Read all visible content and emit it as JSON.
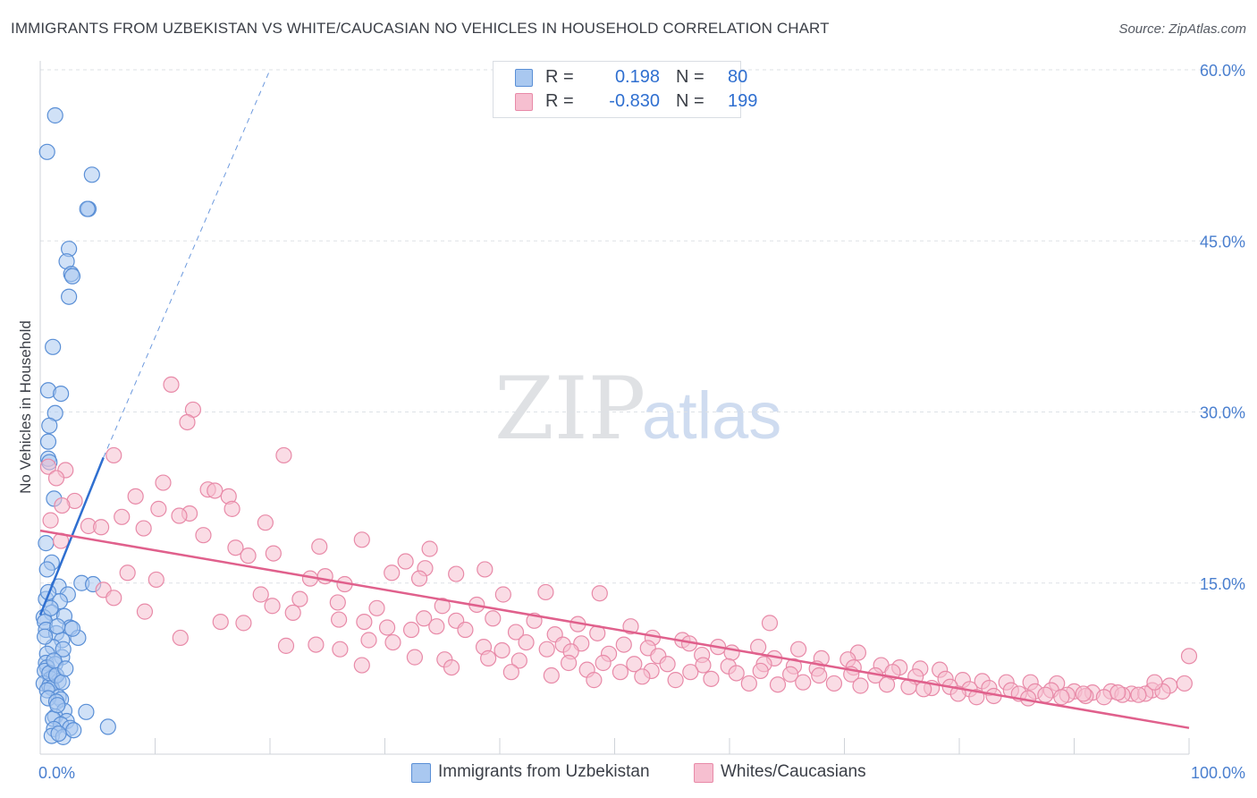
{
  "title": "IMMIGRANTS FROM UZBEKISTAN VS WHITE/CAUCASIAN NO VEHICLES IN HOUSEHOLD CORRELATION CHART",
  "source": "Source: ZipAtlas.com",
  "watermark": {
    "zip": "ZIP",
    "atlas": "atlas"
  },
  "legend": {
    "series1": {
      "r_label": "R =",
      "r_value": "0.198",
      "n_label": "N =",
      "n_value": "80"
    },
    "series2": {
      "r_label": "R =",
      "r_value": "-0.830",
      "n_label": "N =",
      "n_value": "199"
    }
  },
  "bottom_legend": {
    "series1": "Immigrants from Uzbekistan",
    "series2": "Whites/Caucasians"
  },
  "colors": {
    "series1_fill": "#a9c8f0",
    "series1_stroke": "#5a8fd6",
    "series1_line": "#2f6fd0",
    "series2_fill": "#f6bfd0",
    "series2_stroke": "#e88aa8",
    "series2_line": "#e0608c",
    "tick_label": "#4a7fcf",
    "grid": "#dde1e6"
  },
  "chart_data": {
    "type": "scatter",
    "xlabel": "",
    "ylabel": "No Vehicles in Household",
    "xlim": [
      0,
      100
    ],
    "ylim": [
      0,
      60
    ],
    "x_tick_labels": [
      "0.0%",
      "100.0%"
    ],
    "y_ticks": [
      15,
      30,
      45,
      60
    ],
    "y_tick_labels": [
      "15.0%",
      "30.0%",
      "45.0%",
      "60.0%"
    ],
    "grid": "horizontal dashed",
    "series": [
      {
        "name": "Immigrants from Uzbekistan",
        "trend": {
          "x": [
            0.0,
            5.5
          ],
          "y": [
            12.2,
            26.0
          ],
          "extended_to": [
            20.0,
            60.0
          ]
        },
        "points": [
          [
            1.3,
            56.0
          ],
          [
            0.6,
            52.8
          ],
          [
            4.5,
            50.8
          ],
          [
            4.2,
            47.8
          ],
          [
            4.1,
            47.8
          ],
          [
            2.5,
            44.3
          ],
          [
            2.3,
            43.2
          ],
          [
            2.7,
            42.1
          ],
          [
            2.8,
            41.9
          ],
          [
            2.5,
            40.1
          ],
          [
            1.1,
            35.7
          ],
          [
            0.7,
            31.9
          ],
          [
            1.8,
            31.6
          ],
          [
            1.3,
            29.9
          ],
          [
            0.8,
            28.8
          ],
          [
            0.7,
            27.4
          ],
          [
            0.7,
            25.9
          ],
          [
            0.8,
            25.6
          ],
          [
            1.2,
            22.4
          ],
          [
            0.5,
            18.5
          ],
          [
            1.0,
            16.8
          ],
          [
            0.6,
            16.2
          ],
          [
            3.6,
            15.0
          ],
          [
            4.6,
            14.9
          ],
          [
            1.6,
            14.7
          ],
          [
            2.4,
            14.0
          ],
          [
            0.5,
            13.6
          ],
          [
            1.7,
            13.4
          ],
          [
            1.0,
            12.4
          ],
          [
            2.1,
            12.1
          ],
          [
            0.3,
            12.0
          ],
          [
            0.4,
            11.6
          ],
          [
            2.6,
            11.1
          ],
          [
            0.5,
            10.9
          ],
          [
            1.4,
            10.6
          ],
          [
            3.3,
            10.2
          ],
          [
            1.9,
            10.0
          ],
          [
            1.1,
            9.4
          ],
          [
            0.6,
            8.8
          ],
          [
            1.9,
            8.5
          ],
          [
            0.5,
            8.0
          ],
          [
            1.3,
            7.9
          ],
          [
            0.6,
            7.6
          ],
          [
            0.4,
            7.3
          ],
          [
            1.2,
            6.8
          ],
          [
            0.9,
            6.6
          ],
          [
            1.6,
            6.4
          ],
          [
            0.3,
            6.2
          ],
          [
            0.8,
            6.0
          ],
          [
            1.0,
            5.8
          ],
          [
            0.6,
            5.6
          ],
          [
            1.6,
            5.0
          ],
          [
            1.8,
            4.8
          ],
          [
            0.7,
            4.9
          ],
          [
            1.4,
            4.6
          ],
          [
            2.1,
            3.8
          ],
          [
            4.0,
            3.7
          ],
          [
            1.3,
            3.3
          ],
          [
            1.1,
            3.1
          ],
          [
            2.3,
            2.9
          ],
          [
            1.8,
            2.6
          ],
          [
            2.6,
            2.3
          ],
          [
            1.2,
            2.2
          ],
          [
            5.9,
            2.4
          ],
          [
            1.0,
            1.6
          ],
          [
            2.0,
            1.5
          ],
          [
            1.6,
            1.8
          ],
          [
            0.9,
            12.8
          ],
          [
            1.5,
            11.2
          ],
          [
            2.0,
            9.2
          ],
          [
            0.8,
            7.1
          ],
          [
            1.4,
            6.9
          ],
          [
            1.9,
            6.3
          ],
          [
            2.8,
            11.0
          ],
          [
            0.4,
            10.3
          ],
          [
            1.2,
            8.2
          ],
          [
            0.7,
            14.2
          ],
          [
            2.2,
            7.5
          ],
          [
            1.5,
            4.3
          ],
          [
            2.9,
            2.1
          ]
        ]
      },
      {
        "name": "Whites/Caucasians",
        "trend": {
          "x": [
            0.0,
            100.0
          ],
          "y": [
            19.6,
            2.3
          ]
        },
        "points": [
          [
            11.4,
            32.4
          ],
          [
            13.3,
            30.2
          ],
          [
            12.8,
            29.1
          ],
          [
            6.4,
            26.2
          ],
          [
            21.2,
            26.2
          ],
          [
            0.7,
            25.2
          ],
          [
            2.2,
            24.9
          ],
          [
            1.4,
            24.2
          ],
          [
            10.7,
            23.8
          ],
          [
            14.6,
            23.2
          ],
          [
            15.2,
            23.1
          ],
          [
            8.3,
            22.6
          ],
          [
            16.4,
            22.6
          ],
          [
            3.0,
            22.2
          ],
          [
            1.9,
            21.8
          ],
          [
            10.3,
            21.5
          ],
          [
            16.7,
            21.5
          ],
          [
            13.0,
            21.1
          ],
          [
            12.1,
            20.9
          ],
          [
            7.1,
            20.8
          ],
          [
            0.9,
            20.5
          ],
          [
            19.6,
            20.3
          ],
          [
            4.2,
            20.0
          ],
          [
            5.3,
            19.9
          ],
          [
            9.0,
            19.8
          ],
          [
            14.2,
            19.2
          ],
          [
            1.8,
            18.7
          ],
          [
            24.3,
            18.2
          ],
          [
            17.0,
            18.1
          ],
          [
            33.9,
            18.0
          ],
          [
            28.0,
            18.8
          ],
          [
            20.3,
            17.6
          ],
          [
            18.1,
            17.4
          ],
          [
            31.8,
            16.9
          ],
          [
            33.5,
            16.3
          ],
          [
            38.7,
            16.2
          ],
          [
            36.2,
            15.8
          ],
          [
            24.8,
            15.6
          ],
          [
            30.6,
            15.9
          ],
          [
            23.5,
            15.4
          ],
          [
            7.6,
            15.9
          ],
          [
            10.1,
            15.3
          ],
          [
            33.0,
            15.4
          ],
          [
            26.5,
            14.9
          ],
          [
            44.0,
            14.2
          ],
          [
            40.3,
            14.0
          ],
          [
            48.7,
            14.1
          ],
          [
            5.5,
            14.4
          ],
          [
            19.2,
            14.0
          ],
          [
            6.4,
            13.7
          ],
          [
            22.6,
            13.6
          ],
          [
            25.9,
            13.3
          ],
          [
            20.2,
            13.0
          ],
          [
            35.0,
            13.0
          ],
          [
            29.3,
            12.8
          ],
          [
            38.0,
            13.1
          ],
          [
            9.1,
            12.5
          ],
          [
            22.0,
            12.4
          ],
          [
            33.4,
            11.9
          ],
          [
            26.0,
            11.8
          ],
          [
            28.2,
            11.6
          ],
          [
            15.7,
            11.6
          ],
          [
            17.7,
            11.5
          ],
          [
            36.2,
            11.7
          ],
          [
            39.4,
            11.9
          ],
          [
            43.0,
            11.7
          ],
          [
            46.8,
            11.4
          ],
          [
            51.4,
            11.2
          ],
          [
            30.2,
            11.1
          ],
          [
            32.3,
            10.9
          ],
          [
            34.5,
            11.2
          ],
          [
            37.0,
            10.9
          ],
          [
            41.4,
            10.7
          ],
          [
            44.8,
            10.5
          ],
          [
            48.5,
            10.6
          ],
          [
            53.3,
            10.2
          ],
          [
            55.9,
            10.0
          ],
          [
            63.5,
            11.5
          ],
          [
            12.2,
            10.2
          ],
          [
            28.6,
            10.0
          ],
          [
            30.7,
            9.8
          ],
          [
            24.0,
            9.6
          ],
          [
            21.4,
            9.5
          ],
          [
            42.3,
            9.8
          ],
          [
            45.5,
            9.6
          ],
          [
            47.1,
            9.7
          ],
          [
            50.8,
            9.6
          ],
          [
            52.9,
            9.3
          ],
          [
            56.5,
            9.7
          ],
          [
            59.0,
            9.4
          ],
          [
            62.5,
            9.4
          ],
          [
            66.0,
            9.2
          ],
          [
            71.2,
            8.9
          ],
          [
            26.1,
            9.2
          ],
          [
            38.6,
            9.4
          ],
          [
            40.2,
            9.1
          ],
          [
            44.1,
            9.2
          ],
          [
            46.2,
            9.0
          ],
          [
            49.5,
            8.8
          ],
          [
            53.8,
            8.6
          ],
          [
            57.6,
            8.7
          ],
          [
            60.2,
            8.9
          ],
          [
            63.9,
            8.4
          ],
          [
            68.0,
            8.4
          ],
          [
            70.3,
            8.3
          ],
          [
            32.6,
            8.5
          ],
          [
            35.2,
            8.3
          ],
          [
            39.0,
            8.4
          ],
          [
            41.7,
            8.2
          ],
          [
            46.0,
            8.0
          ],
          [
            49.0,
            8.0
          ],
          [
            51.7,
            7.9
          ],
          [
            54.6,
            7.9
          ],
          [
            57.7,
            7.8
          ],
          [
            59.9,
            7.7
          ],
          [
            63.0,
            7.9
          ],
          [
            65.6,
            7.7
          ],
          [
            67.6,
            7.5
          ],
          [
            70.8,
            7.6
          ],
          [
            73.2,
            7.8
          ],
          [
            74.8,
            7.6
          ],
          [
            76.6,
            7.5
          ],
          [
            78.3,
            7.4
          ],
          [
            28.0,
            7.8
          ],
          [
            35.8,
            7.6
          ],
          [
            41.0,
            7.2
          ],
          [
            47.6,
            7.4
          ],
          [
            50.5,
            7.2
          ],
          [
            53.2,
            7.3
          ],
          [
            56.6,
            7.2
          ],
          [
            60.6,
            7.1
          ],
          [
            62.7,
            7.3
          ],
          [
            65.3,
            7.0
          ],
          [
            67.8,
            6.9
          ],
          [
            70.6,
            7.0
          ],
          [
            72.7,
            6.9
          ],
          [
            74.2,
            7.2
          ],
          [
            76.2,
            6.8
          ],
          [
            78.8,
            6.6
          ],
          [
            80.3,
            6.5
          ],
          [
            82.0,
            6.4
          ],
          [
            84.1,
            6.3
          ],
          [
            86.2,
            6.3
          ],
          [
            88.5,
            6.2
          ],
          [
            44.5,
            6.9
          ],
          [
            48.2,
            6.5
          ],
          [
            52.4,
            6.8
          ],
          [
            55.3,
            6.5
          ],
          [
            58.4,
            6.6
          ],
          [
            61.7,
            6.2
          ],
          [
            64.2,
            6.1
          ],
          [
            66.4,
            6.3
          ],
          [
            69.1,
            6.2
          ],
          [
            71.4,
            6.0
          ],
          [
            73.7,
            6.1
          ],
          [
            75.6,
            5.9
          ],
          [
            77.6,
            5.8
          ],
          [
            79.2,
            5.9
          ],
          [
            80.9,
            5.7
          ],
          [
            82.6,
            5.8
          ],
          [
            84.5,
            5.6
          ],
          [
            86.6,
            5.5
          ],
          [
            88.0,
            5.6
          ],
          [
            90.0,
            5.5
          ],
          [
            91.6,
            5.4
          ],
          [
            93.2,
            5.5
          ],
          [
            95.0,
            5.3
          ],
          [
            96.8,
            5.6
          ],
          [
            98.3,
            6.0
          ],
          [
            99.6,
            6.2
          ],
          [
            79.9,
            5.3
          ],
          [
            83.0,
            5.1
          ],
          [
            85.2,
            5.3
          ],
          [
            87.5,
            5.2
          ],
          [
            89.4,
            5.2
          ],
          [
            91.0,
            5.1
          ],
          [
            92.6,
            5.0
          ],
          [
            94.2,
            5.2
          ],
          [
            96.2,
            5.3
          ],
          [
            97.7,
            5.5
          ],
          [
            76.9,
            5.7
          ],
          [
            81.5,
            5.0
          ],
          [
            86.0,
            4.9
          ],
          [
            88.9,
            5.0
          ],
          [
            90.8,
            5.3
          ],
          [
            93.8,
            5.4
          ],
          [
            95.6,
            5.2
          ],
          [
            100.0,
            8.6
          ],
          [
            97.0,
            6.3
          ]
        ]
      }
    ]
  }
}
